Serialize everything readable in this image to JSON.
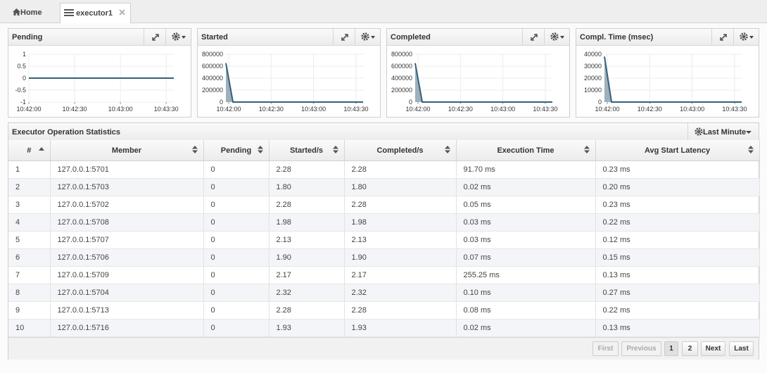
{
  "tabs": [
    "Home",
    "executor1"
  ],
  "chart_data": [
    {
      "type": "line",
      "title": "Pending",
      "color": "#34607a",
      "grid": true,
      "x": [
        "10:42:00",
        "10:43:35"
      ],
      "values": [
        0,
        0
      ],
      "xlim": [
        "10:42:00",
        "10:43:35"
      ],
      "xticks": [
        "10:42:00",
        "10:42:30",
        "10:43:00",
        "10:43:30"
      ],
      "ylim": [
        -1,
        1
      ],
      "yticks": [
        -1,
        -0.5,
        0,
        0.5,
        1
      ]
    },
    {
      "type": "area",
      "title": "Started",
      "color": "#34607a",
      "area_color": "#9fb0bd",
      "grid": true,
      "x": [
        "10:41:58",
        "10:42:03",
        "10:43:35"
      ],
      "values": [
        650000,
        0,
        0
      ],
      "xlim": [
        "10:41:58",
        "10:43:35"
      ],
      "xticks": [
        "10:42:00",
        "10:42:30",
        "10:43:00",
        "10:43:30"
      ],
      "ylim": [
        0,
        800000
      ],
      "yticks": [
        0,
        200000,
        400000,
        600000,
        800000
      ]
    },
    {
      "type": "area",
      "title": "Completed",
      "color": "#34607a",
      "area_color": "#9fb0bd",
      "grid": true,
      "x": [
        "10:41:58",
        "10:42:03",
        "10:43:35"
      ],
      "values": [
        650000,
        0,
        0
      ],
      "xlim": [
        "10:41:58",
        "10:43:35"
      ],
      "xticks": [
        "10:42:00",
        "10:42:30",
        "10:43:00",
        "10:43:30"
      ],
      "ylim": [
        0,
        800000
      ],
      "yticks": [
        0,
        200000,
        400000,
        600000,
        800000
      ]
    },
    {
      "type": "area",
      "title": "Compl. Time (msec)",
      "color": "#34607a",
      "area_color": "#9fb0bd",
      "grid": true,
      "x": [
        "10:41:58",
        "10:42:03",
        "10:43:35"
      ],
      "values": [
        38000,
        0,
        0
      ],
      "xlim": [
        "10:41:58",
        "10:43:35"
      ],
      "xticks": [
        "10:42:00",
        "10:42:30",
        "10:43:00",
        "10:43:30"
      ],
      "ylim": [
        0,
        40000
      ],
      "yticks": [
        0,
        10000,
        20000,
        30000,
        40000
      ]
    }
  ],
  "table": {
    "title": "Executor Operation Statistics",
    "range": "Last Minute",
    "header": [
      "#",
      "Member",
      "Pending",
      "Started/s",
      "Completed/s",
      "Execution Time",
      "Avg Start Latency"
    ],
    "rows": [
      [
        "1",
        "127.0.0.1:5701",
        "0",
        "2.28",
        "2.28",
        "91.70 ms",
        "0.23 ms"
      ],
      [
        "2",
        "127.0.0.1:5703",
        "0",
        "1.80",
        "1.80",
        "0.02 ms",
        "0.20 ms"
      ],
      [
        "3",
        "127.0.0.1:5702",
        "0",
        "2.28",
        "2.28",
        "0.05 ms",
        "0.23 ms"
      ],
      [
        "4",
        "127.0.0.1:5708",
        "0",
        "1.98",
        "1.98",
        "0.03 ms",
        "0.22 ms"
      ],
      [
        "5",
        "127.0.0.1:5707",
        "0",
        "2.13",
        "2.13",
        "0.03 ms",
        "0.12 ms"
      ],
      [
        "6",
        "127.0.0.1:5706",
        "0",
        "1.90",
        "1.90",
        "0.07 ms",
        "0.15 ms"
      ],
      [
        "7",
        "127.0.0.1:5709",
        "0",
        "2.17",
        "2.17",
        "255.25 ms",
        "0.13 ms"
      ],
      [
        "8",
        "127.0.0.1:5704",
        "0",
        "2.32",
        "2.32",
        "0.10 ms",
        "0.27 ms"
      ],
      [
        "9",
        "127.0.0.1:5713",
        "0",
        "2.28",
        "2.28",
        "0.08 ms",
        "0.22 ms"
      ],
      [
        "10",
        "127.0.0.1:5716",
        "0",
        "1.93",
        "1.93",
        "0.02 ms",
        "0.13 ms"
      ]
    ],
    "pagination": [
      "First",
      "Previous",
      "1",
      "2",
      "Next",
      "Last"
    ]
  }
}
